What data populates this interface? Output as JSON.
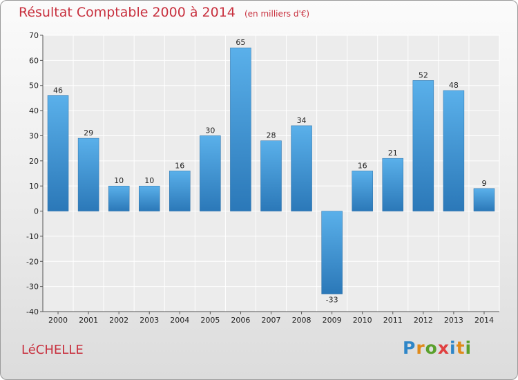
{
  "title": "Résultat Comptable 2000 à 2014",
  "unit": "(en milliers d'€)",
  "commune": "LéCHELLE",
  "logo": {
    "text": "Proxiti",
    "colors": [
      "#2e86c8",
      "#e08a1a",
      "#5aa02c",
      "#e04040",
      "#2e86c8",
      "#e08a1a",
      "#5aa02c"
    ]
  },
  "colors": {
    "bar_top": "#5ab0ea",
    "bar_bottom": "#2b78b8",
    "title": "#c8303e"
  },
  "chart_data": {
    "type": "bar",
    "categories": [
      "2000",
      "2001",
      "2002",
      "2003",
      "2004",
      "2005",
      "2006",
      "2007",
      "2008",
      "2009",
      "2010",
      "2011",
      "2012",
      "2013",
      "2014"
    ],
    "values": [
      46,
      29,
      10,
      10,
      16,
      30,
      65,
      28,
      34,
      -33,
      16,
      21,
      52,
      48,
      9
    ],
    "ylim": [
      -40,
      70
    ],
    "yticks": [
      70,
      60,
      50,
      40,
      30,
      20,
      10,
      0,
      -10,
      -20,
      -30,
      -40
    ],
    "grid": true,
    "title": "Résultat Comptable 2000 à 2014",
    "xlabel": "",
    "ylabel": ""
  }
}
